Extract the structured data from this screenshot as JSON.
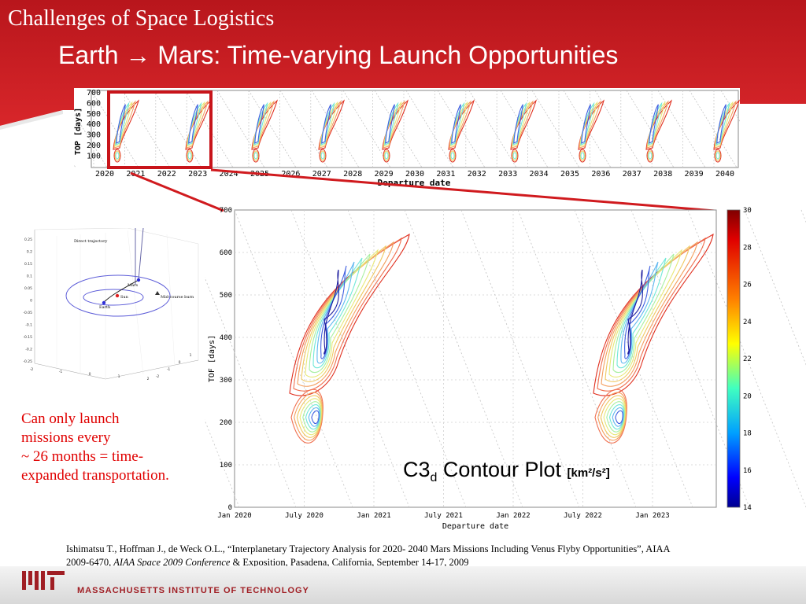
{
  "slide": {
    "section_title": "Challenges of Space Logistics",
    "title": "Earth → Mars: Time-varying Launch Opportunities"
  },
  "strip": {
    "ylabel": "TOP [days]",
    "xlabel": "Departure date",
    "yticks": [
      "700",
      "600",
      "500",
      "400",
      "300",
      "200",
      "100"
    ],
    "xticks": [
      "2020",
      "2021",
      "2022",
      "2023",
      "2024",
      "2025",
      "2026",
      "2027",
      "2028",
      "2029",
      "2030",
      "2031",
      "2032",
      "2033",
      "2034",
      "2035",
      "2036",
      "2037",
      "2038",
      "2039",
      "2040"
    ]
  },
  "orbit_plot": {
    "labels": {
      "direct": "Direct trajectory",
      "mars": "Mars",
      "sun": "Sun",
      "earth": "Earth",
      "burn": "Mid-course burn"
    },
    "zticks": [
      "0.25",
      "0.2",
      "0.15",
      "0.1",
      "0.05",
      "0",
      "-0.05",
      "-0.1",
      "-0.15",
      "-0.2",
      "-0.25"
    ],
    "xticks": [
      "-2",
      "-1",
      "0",
      "1",
      "2"
    ],
    "yticks": [
      "-2",
      "-1",
      "0",
      "1",
      "2"
    ]
  },
  "caption": {
    "line1": "Can only launch",
    "line2": "missions every",
    "line3": "~ 26 months = time-",
    "line4": "expanded transportation."
  },
  "main_plot": {
    "ylabel": "TOF [days]",
    "xlabel": "Departure date",
    "yticks": [
      "700",
      "600",
      "500",
      "400",
      "300",
      "200",
      "100",
      "0"
    ],
    "xticks": [
      "Jan 2020",
      "July 2020",
      "Jan 2021",
      "July 2021",
      "Jan 2022",
      "July 2022",
      "Jan 2023"
    ],
    "label_main": "C3",
    "label_sub": "d",
    "label_text": " Contour Plot ",
    "label_unit": "[km²/s²]"
  },
  "colorbar": {
    "ticks": [
      "30",
      "28",
      "26",
      "24",
      "22",
      "20",
      "18",
      "16",
      "14"
    ]
  },
  "citation": {
    "line1": "Ishimatsu T., Hoffman J., de Weck O.L., “Interplanetary Trajectory Analysis for 2020- 2040 Mars Missions Including Venus Flyby Opportunities”, AIAA",
    "line2a": "2009-6470",
    "line2b": ", AIAA Space 2009 Conference",
    "line2c": " & Exposition, Pasadena, California, September 14-17, 2009"
  },
  "footer": {
    "institute": "MASSACHUSETTS INSTITUTE OF TECHNOLOGY"
  },
  "colors": {
    "header_red": "#d41f24",
    "dark_red": "#a01e24",
    "caption_red": "#e00000"
  }
}
